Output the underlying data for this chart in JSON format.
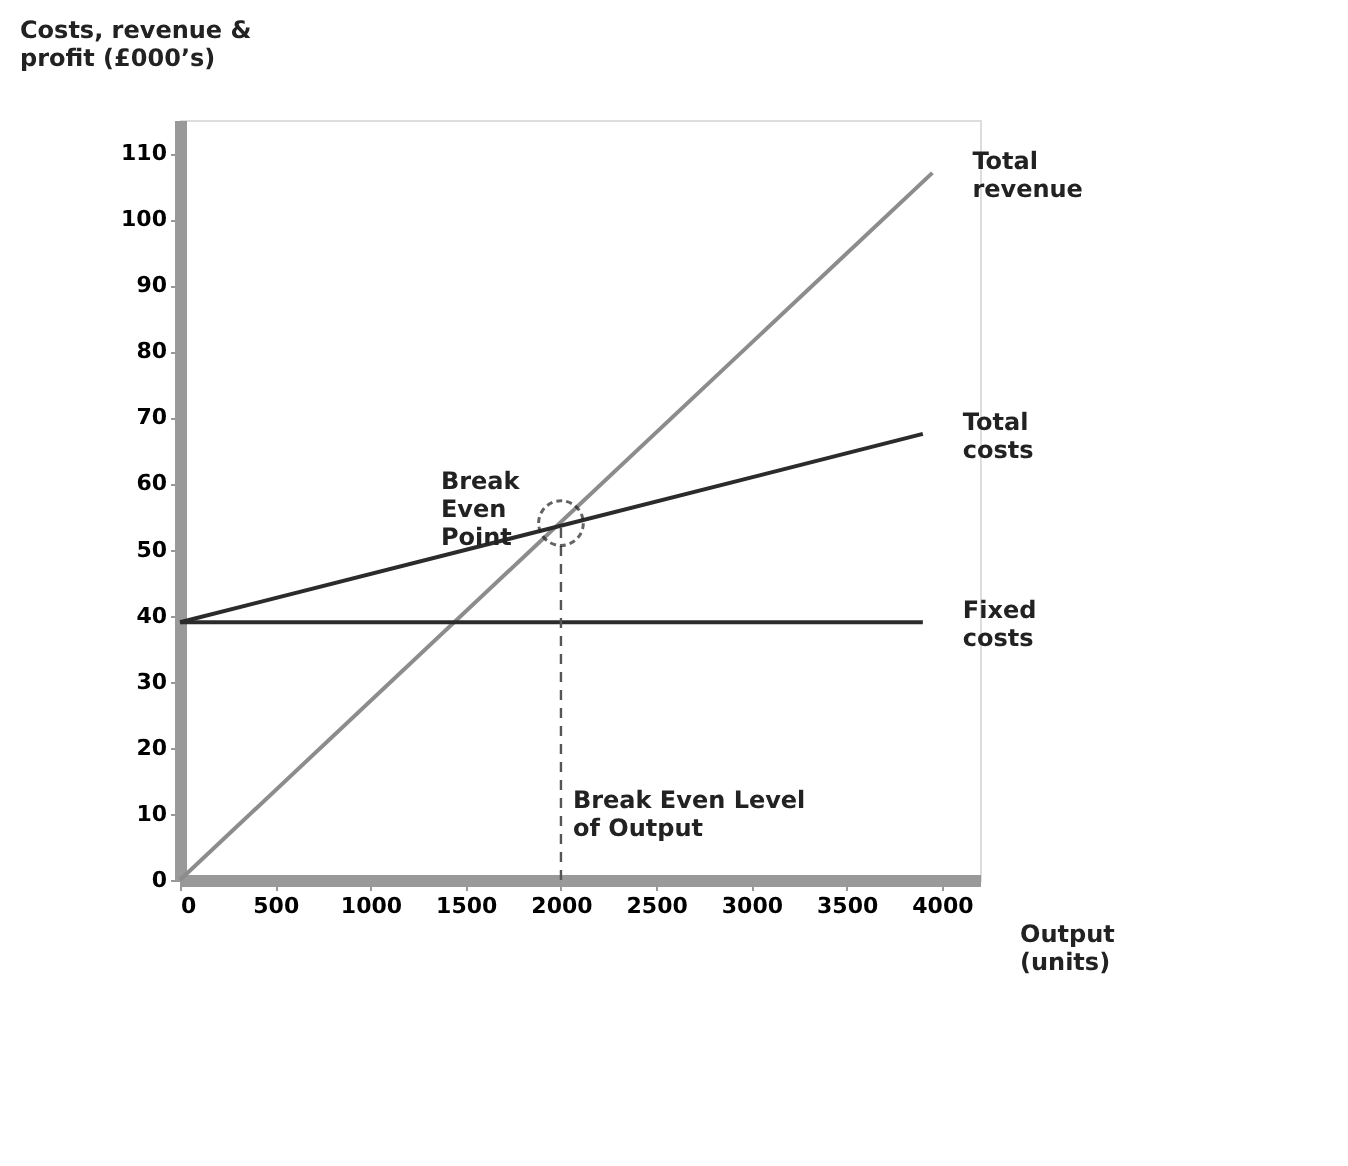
{
  "chart_data": {
    "type": "line",
    "xlabel": "Output (units)",
    "ylabel": "Costs, revenue & profit (£000’s)",
    "series": [
      {
        "name": "Total revenue",
        "color": "#8c8c8c",
        "x": [
          0,
          3950
        ],
        "values": [
          0,
          107
        ]
      },
      {
        "name": "Total costs",
        "color": "#2b2b2b",
        "x": [
          0,
          3900
        ],
        "values": [
          39,
          67.5
        ]
      },
      {
        "name": "Fixed costs",
        "color": "#2b2b2b",
        "x": [
          0,
          3900
        ],
        "values": [
          39,
          39
        ]
      }
    ],
    "xlim": [
      0,
      4200
    ],
    "xticks": [
      0,
      500,
      1000,
      1500,
      2000,
      2500,
      3000,
      3500,
      4000
    ],
    "ylim": [
      0,
      115
    ],
    "yticks": [
      0,
      10,
      20,
      30,
      40,
      50,
      60,
      70,
      80,
      90,
      100,
      110
    ],
    "ref_lines": [
      {
        "axis": "x",
        "value": 2000,
        "label": "Break Even Level of Output",
        "line_style": "dashed",
        "color": "#555555"
      }
    ],
    "annotations": [
      {
        "text": "Break Even Point",
        "x": 2000,
        "y": 54
      }
    ],
    "grid": false,
    "marker": "none",
    "line_style": "solid"
  }
}
